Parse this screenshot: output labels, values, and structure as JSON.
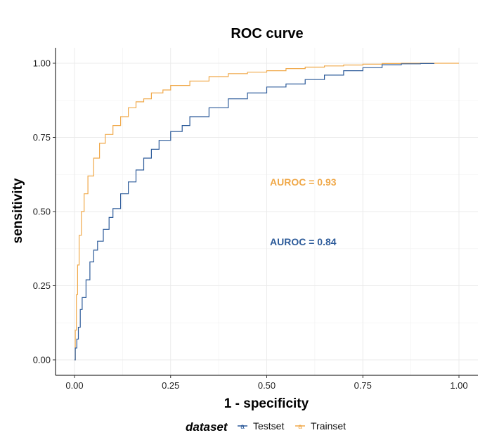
{
  "chart_data": {
    "type": "line",
    "title": "ROC curve",
    "xlabel": "1 - specificity",
    "ylabel": "sensitivity",
    "xlim": [
      0,
      1
    ],
    "ylim": [
      0,
      1
    ],
    "x_ticks": [
      "0.00",
      "0.25",
      "0.50",
      "0.75",
      "1.00"
    ],
    "y_ticks": [
      "0.00",
      "0.25",
      "0.50",
      "0.75",
      "1.00"
    ],
    "grid": true,
    "legend": {
      "title": "dataset",
      "position": "bottom"
    },
    "series": [
      {
        "name": "Testset",
        "color": "#2d5b9a",
        "auroc_label": "AUROC = 0.84",
        "points": [
          [
            0.0,
            0.0
          ],
          [
            0.002,
            0.04
          ],
          [
            0.006,
            0.07
          ],
          [
            0.01,
            0.11
          ],
          [
            0.015,
            0.17
          ],
          [
            0.02,
            0.21
          ],
          [
            0.03,
            0.27
          ],
          [
            0.04,
            0.33
          ],
          [
            0.05,
            0.37
          ],
          [
            0.06,
            0.4
          ],
          [
            0.075,
            0.44
          ],
          [
            0.09,
            0.48
          ],
          [
            0.1,
            0.51
          ],
          [
            0.12,
            0.56
          ],
          [
            0.14,
            0.6
          ],
          [
            0.16,
            0.64
          ],
          [
            0.18,
            0.68
          ],
          [
            0.2,
            0.71
          ],
          [
            0.22,
            0.74
          ],
          [
            0.25,
            0.77
          ],
          [
            0.28,
            0.79
          ],
          [
            0.3,
            0.82
          ],
          [
            0.35,
            0.85
          ],
          [
            0.4,
            0.88
          ],
          [
            0.45,
            0.9
          ],
          [
            0.5,
            0.92
          ],
          [
            0.55,
            0.93
          ],
          [
            0.6,
            0.945
          ],
          [
            0.65,
            0.96
          ],
          [
            0.7,
            0.975
          ],
          [
            0.75,
            0.985
          ],
          [
            0.8,
            0.995
          ],
          [
            0.85,
            0.998
          ],
          [
            0.9,
            0.999
          ],
          [
            0.935,
            1.0
          ]
        ]
      },
      {
        "name": "Trainset",
        "color": "#f0a94a",
        "auroc_label": "AUROC = 0.93",
        "points": [
          [
            0.0,
            0.0
          ],
          [
            0.002,
            0.1
          ],
          [
            0.005,
            0.22
          ],
          [
            0.008,
            0.32
          ],
          [
            0.012,
            0.42
          ],
          [
            0.018,
            0.5
          ],
          [
            0.025,
            0.56
          ],
          [
            0.035,
            0.62
          ],
          [
            0.05,
            0.68
          ],
          [
            0.065,
            0.73
          ],
          [
            0.08,
            0.76
          ],
          [
            0.1,
            0.79
          ],
          [
            0.12,
            0.82
          ],
          [
            0.14,
            0.85
          ],
          [
            0.16,
            0.87
          ],
          [
            0.18,
            0.88
          ],
          [
            0.2,
            0.9
          ],
          [
            0.23,
            0.91
          ],
          [
            0.25,
            0.925
          ],
          [
            0.3,
            0.94
          ],
          [
            0.35,
            0.955
          ],
          [
            0.4,
            0.965
          ],
          [
            0.45,
            0.97
          ],
          [
            0.5,
            0.975
          ],
          [
            0.55,
            0.982
          ],
          [
            0.6,
            0.987
          ],
          [
            0.65,
            0.991
          ],
          [
            0.7,
            0.994
          ],
          [
            0.75,
            0.997
          ],
          [
            0.8,
            0.999
          ],
          [
            0.85,
            1.0
          ],
          [
            1.0,
            1.0
          ]
        ]
      }
    ]
  }
}
